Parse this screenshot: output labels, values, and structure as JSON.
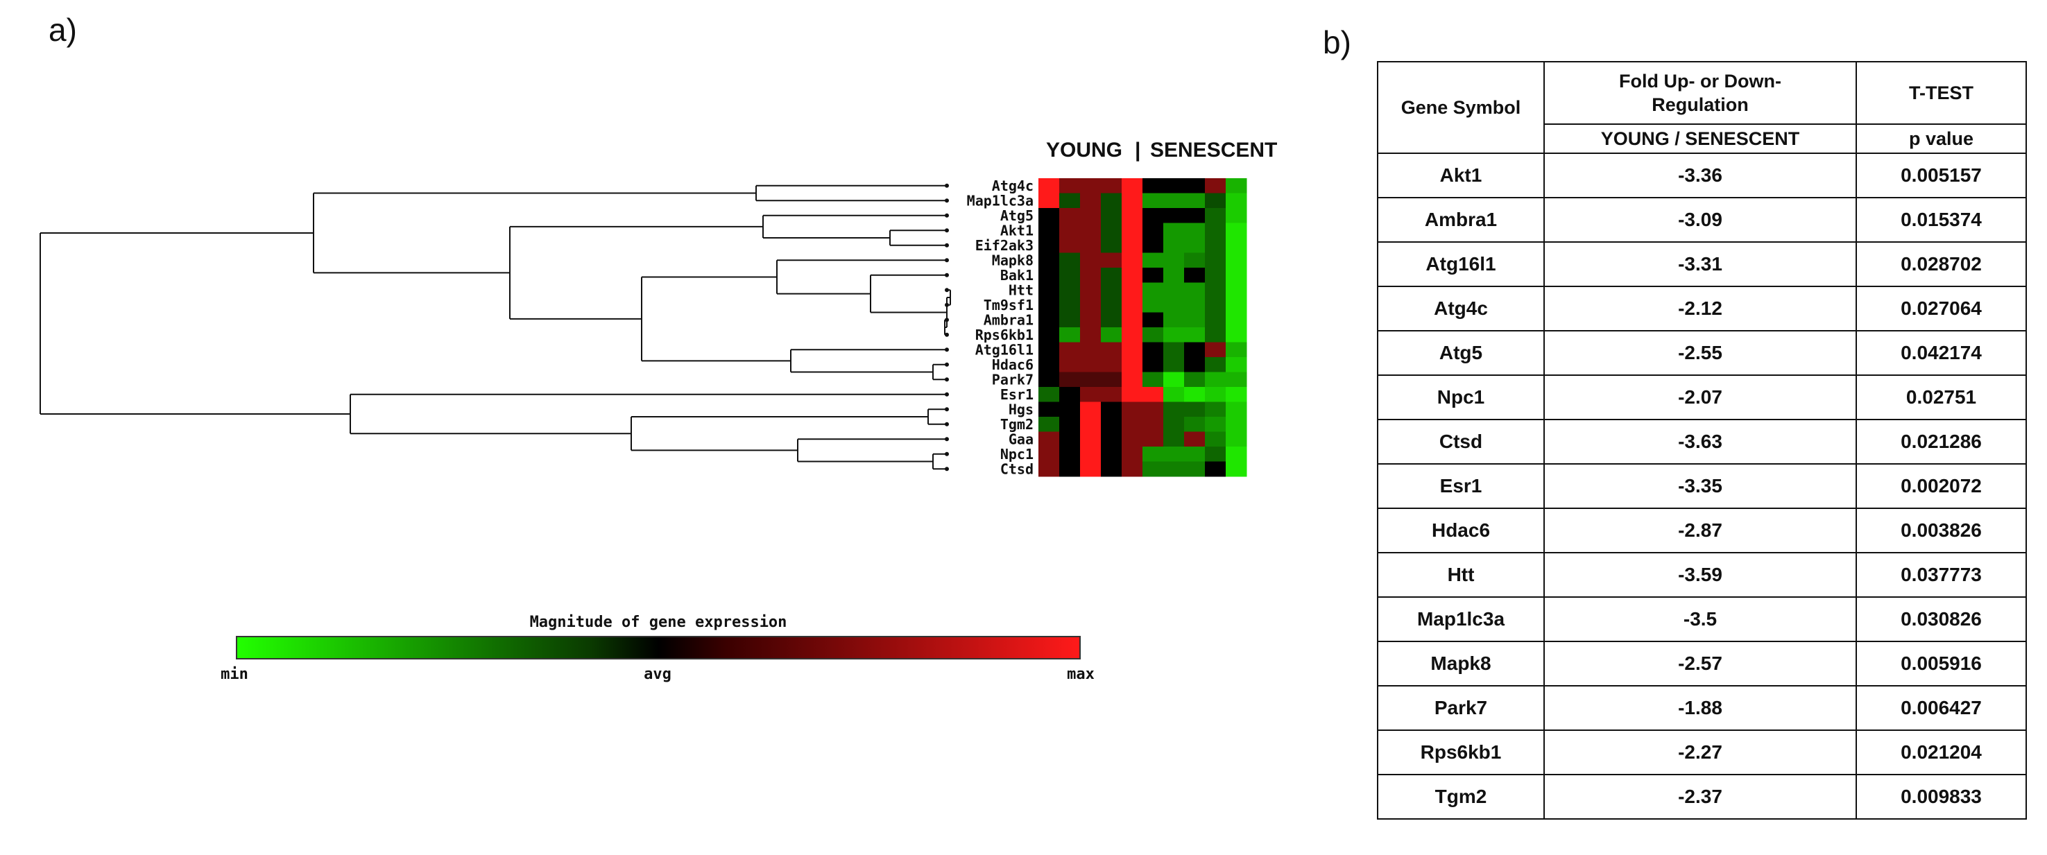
{
  "panel_labels": {
    "a": "a)",
    "b": "b)"
  },
  "heatmap": {
    "group_young": "YOUNG",
    "group_separator": "|",
    "group_senescent": "SENESCENT",
    "colorbar_title": "Magnitude of gene expression",
    "colorbar_ticks": {
      "min": "min",
      "avg": "avg",
      "max": "max"
    },
    "colors": {
      "min": "#22ff00",
      "avg": "#000000",
      "max": "#ff1a1a"
    }
  },
  "chart_data": [
    {
      "type": "heatmap",
      "title": "",
      "columns_young": 5,
      "columns_senescent": 5,
      "rows": [
        "Atg4c",
        "Map1lc3a",
        "Atg5",
        "Akt1",
        "Eif2ak3",
        "Mapk8",
        "Bak1",
        "Htt",
        "Tm9sf1",
        "Ambra1",
        "Rps6kb1",
        "Atg16l1",
        "Hdac6",
        "Park7",
        "Esr1",
        "Hgs",
        "Tgm2",
        "Gaa",
        "Npc1",
        "Ctsd"
      ],
      "values": [
        [
          1.0,
          0.5,
          0.5,
          0.5,
          1.0,
          0.0,
          0.0,
          0.0,
          0.5,
          -0.7
        ],
        [
          1.0,
          -0.3,
          0.5,
          -0.3,
          1.0,
          -0.6,
          -0.6,
          -0.6,
          -0.3,
          -0.8
        ],
        [
          0.0,
          0.5,
          0.5,
          -0.3,
          1.0,
          0.0,
          0.0,
          0.0,
          -0.4,
          -0.8
        ],
        [
          0.0,
          0.5,
          0.5,
          -0.3,
          1.0,
          0.0,
          -0.6,
          -0.6,
          -0.4,
          -0.9
        ],
        [
          0.0,
          0.5,
          0.5,
          -0.3,
          1.0,
          0.0,
          -0.6,
          -0.6,
          -0.4,
          -0.9
        ],
        [
          0.0,
          -0.3,
          0.5,
          0.5,
          1.0,
          -0.6,
          -0.6,
          -0.5,
          -0.4,
          -0.9
        ],
        [
          0.0,
          -0.3,
          0.5,
          -0.3,
          1.0,
          0.0,
          -0.6,
          0.0,
          -0.4,
          -0.9
        ],
        [
          0.0,
          -0.3,
          0.5,
          -0.3,
          1.0,
          -0.6,
          -0.6,
          -0.6,
          -0.4,
          -0.9
        ],
        [
          0.0,
          -0.3,
          0.5,
          -0.3,
          1.0,
          -0.6,
          -0.6,
          -0.6,
          -0.4,
          -0.9
        ],
        [
          0.0,
          -0.3,
          0.5,
          -0.3,
          1.0,
          0.0,
          -0.6,
          -0.6,
          -0.4,
          -0.9
        ],
        [
          0.0,
          -0.6,
          0.5,
          -0.6,
          1.0,
          -0.5,
          -0.7,
          -0.7,
          -0.4,
          -0.9
        ],
        [
          0.0,
          0.5,
          0.5,
          0.5,
          1.0,
          0.0,
          -0.4,
          0.0,
          0.5,
          -0.7
        ],
        [
          0.0,
          0.5,
          0.5,
          0.5,
          1.0,
          0.0,
          -0.4,
          0.0,
          -0.4,
          -0.8
        ],
        [
          0.0,
          0.3,
          0.3,
          0.3,
          1.0,
          -0.5,
          -0.9,
          -0.5,
          -0.7,
          -0.7
        ],
        [
          -0.4,
          0.0,
          0.5,
          0.5,
          1.0,
          1.0,
          -0.8,
          -0.9,
          -0.8,
          -0.9
        ],
        [
          0.0,
          0.0,
          1.0,
          0.0,
          0.5,
          0.5,
          -0.4,
          -0.4,
          -0.5,
          -0.8
        ],
        [
          -0.4,
          0.0,
          1.0,
          0.0,
          0.5,
          0.5,
          -0.4,
          -0.5,
          -0.6,
          -0.8
        ],
        [
          0.5,
          0.0,
          1.0,
          0.0,
          0.5,
          0.5,
          -0.4,
          0.5,
          -0.5,
          -0.8
        ],
        [
          0.5,
          0.0,
          1.0,
          0.0,
          0.5,
          -0.6,
          -0.6,
          -0.6,
          -0.4,
          -0.9
        ],
        [
          0.5,
          0.0,
          1.0,
          0.0,
          0.5,
          -0.5,
          -0.5,
          -0.5,
          0.0,
          -0.9
        ]
      ],
      "value_range": [
        -1,
        1
      ]
    },
    {
      "type": "table",
      "headers": {
        "gene_symbol": "Gene Symbol",
        "fold_line1": "Fold Up- or Down-",
        "fold_line2": "Regulation",
        "fold_sub": "YOUNG  / SENESCENT",
        "ttest": "T-TEST",
        "ttest_sub": "p value"
      },
      "rows": [
        {
          "gene": "Akt1",
          "fold": "-3.36",
          "p": "0.005157"
        },
        {
          "gene": "Ambra1",
          "fold": "-3.09",
          "p": "0.015374"
        },
        {
          "gene": "Atg16l1",
          "fold": "-3.31",
          "p": "0.028702"
        },
        {
          "gene": "Atg4c",
          "fold": "-2.12",
          "p": "0.027064"
        },
        {
          "gene": "Atg5",
          "fold": "-2.55",
          "p": "0.042174"
        },
        {
          "gene": "Npc1",
          "fold": "-2.07",
          "p": "0.02751"
        },
        {
          "gene": "Ctsd",
          "fold": "-3.63",
          "p": "0.021286"
        },
        {
          "gene": "Esr1",
          "fold": "-3.35",
          "p": "0.002072"
        },
        {
          "gene": "Hdac6",
          "fold": "-2.87",
          "p": "0.003826"
        },
        {
          "gene": "Htt",
          "fold": "-3.59",
          "p": "0.037773"
        },
        {
          "gene": "Map1lc3a",
          "fold": "-3.5",
          "p": "0.030826"
        },
        {
          "gene": "Mapk8",
          "fold": "-2.57",
          "p": "0.005916"
        },
        {
          "gene": "Park7",
          "fold": "-1.88",
          "p": "0.006427"
        },
        {
          "gene": "Rps6kb1",
          "fold": "-2.27",
          "p": "0.021204"
        },
        {
          "gene": "Tgm2",
          "fold": "-2.37",
          "p": "0.009833"
        }
      ]
    }
  ]
}
